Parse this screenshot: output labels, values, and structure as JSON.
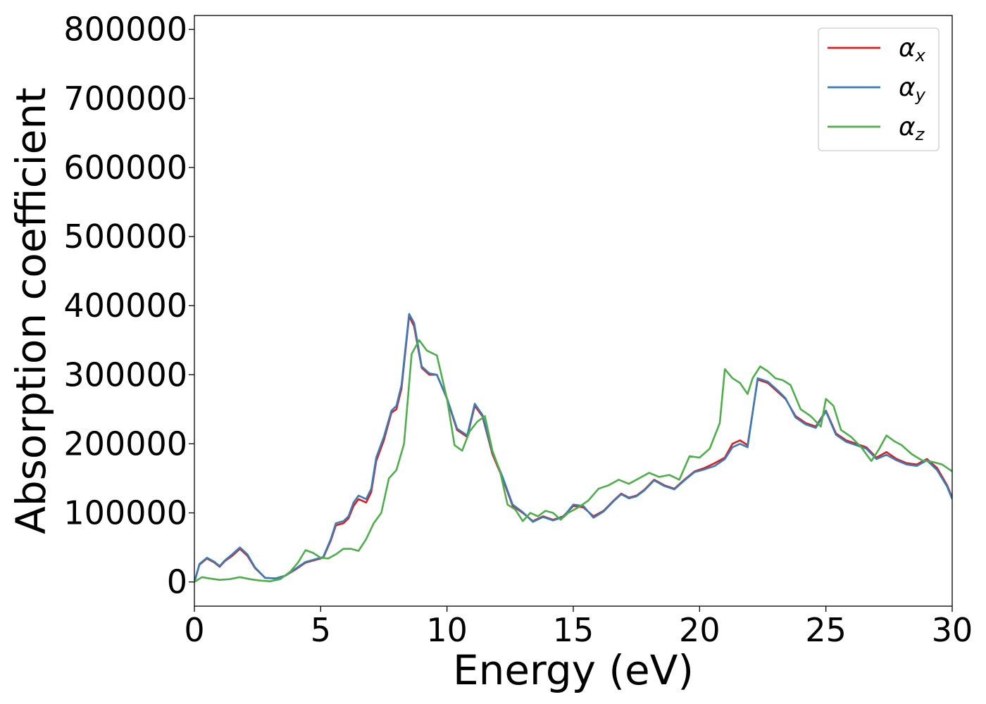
{
  "chart_data": {
    "type": "line",
    "title": "",
    "xlabel": "Energy (eV)",
    "ylabel": "Absorption coefficient",
    "xlim": [
      0,
      30
    ],
    "ylim": [
      -35000,
      820000
    ],
    "xticks": [
      0,
      5,
      10,
      15,
      20,
      25,
      30
    ],
    "xtick_labels": [
      "0",
      "5",
      "10",
      "15",
      "20",
      "25",
      "30"
    ],
    "yticks": [
      0,
      100000,
      200000,
      300000,
      400000,
      500000,
      600000,
      700000,
      800000
    ],
    "ytick_labels": [
      "0",
      "100000",
      "200000",
      "300000",
      "400000",
      "500000",
      "600000",
      "700000",
      "800000"
    ],
    "grid": false,
    "legend_position": "top-right",
    "series": [
      {
        "name": "αx",
        "symbol": "α",
        "subscript": "x",
        "color": "#e41a1c",
        "x": [
          0,
          0.2,
          0.5,
          0.8,
          1.0,
          1.2,
          1.5,
          1.8,
          2.1,
          2.4,
          2.8,
          3.2,
          3.6,
          4.0,
          4.4,
          4.8,
          5.1,
          5.4,
          5.6,
          5.9,
          6.1,
          6.3,
          6.5,
          6.8,
          7.0,
          7.2,
          7.5,
          7.8,
          8.0,
          8.2,
          8.5,
          8.7,
          9.0,
          9.3,
          9.6,
          10.0,
          10.4,
          10.8,
          11.1,
          11.4,
          11.8,
          12.2,
          12.6,
          13.0,
          13.4,
          13.8,
          14.2,
          14.6,
          15.0,
          15.4,
          15.8,
          16.2,
          16.6,
          16.9,
          17.2,
          17.5,
          17.8,
          18.2,
          18.6,
          19.0,
          19.4,
          19.8,
          20.2,
          20.6,
          21.0,
          21.3,
          21.6,
          21.9,
          22.3,
          22.7,
          23.1,
          23.4,
          23.8,
          24.2,
          24.6,
          25.0,
          25.4,
          25.8,
          26.2,
          26.6,
          27.0,
          27.4,
          27.8,
          28.2,
          28.6,
          29.0,
          29.4,
          29.8,
          30.0
        ],
        "values": [
          0,
          25000,
          34000,
          28000,
          22000,
          30000,
          38000,
          48000,
          38000,
          20000,
          6000,
          5000,
          9000,
          18000,
          28000,
          32000,
          35000,
          60000,
          82000,
          85000,
          92000,
          110000,
          120000,
          115000,
          130000,
          175000,
          205000,
          245000,
          250000,
          280000,
          385000,
          370000,
          310000,
          300000,
          300000,
          265000,
          220000,
          210000,
          255000,
          240000,
          185000,
          150000,
          110000,
          100000,
          88000,
          95000,
          90000,
          95000,
          110000,
          108000,
          95000,
          103000,
          118000,
          128000,
          122000,
          125000,
          133000,
          148000,
          140000,
          135000,
          148000,
          160000,
          165000,
          172000,
          180000,
          200000,
          205000,
          198000,
          293000,
          288000,
          275000,
          265000,
          240000,
          230000,
          225000,
          248000,
          215000,
          205000,
          200000,
          195000,
          180000,
          188000,
          178000,
          172000,
          170000,
          178000,
          165000,
          140000,
          122000
        ]
      },
      {
        "name": "αy",
        "symbol": "α",
        "subscript": "y",
        "color": "#377eb8",
        "x": [
          0,
          0.2,
          0.5,
          0.8,
          1.0,
          1.2,
          1.5,
          1.8,
          2.1,
          2.4,
          2.8,
          3.2,
          3.6,
          4.0,
          4.4,
          4.8,
          5.1,
          5.4,
          5.6,
          5.9,
          6.1,
          6.3,
          6.5,
          6.8,
          7.0,
          7.2,
          7.5,
          7.8,
          8.0,
          8.2,
          8.5,
          8.7,
          9.0,
          9.3,
          9.6,
          10.0,
          10.4,
          10.8,
          11.1,
          11.4,
          11.8,
          12.2,
          12.6,
          13.0,
          13.4,
          13.8,
          14.2,
          14.6,
          15.0,
          15.4,
          15.8,
          16.2,
          16.6,
          16.9,
          17.2,
          17.5,
          17.8,
          18.2,
          18.6,
          19.0,
          19.4,
          19.8,
          20.2,
          20.6,
          21.0,
          21.3,
          21.6,
          21.9,
          22.3,
          22.7,
          23.1,
          23.4,
          23.8,
          24.2,
          24.6,
          25.0,
          25.4,
          25.8,
          26.2,
          26.6,
          27.0,
          27.4,
          27.8,
          28.2,
          28.6,
          29.0,
          29.4,
          29.8,
          30.0
        ],
        "values": [
          0,
          26000,
          35000,
          29000,
          23000,
          31000,
          40000,
          50000,
          40000,
          21000,
          6000,
          5000,
          9000,
          19000,
          29000,
          33000,
          36000,
          62000,
          85000,
          88000,
          95000,
          115000,
          125000,
          120000,
          135000,
          180000,
          210000,
          248000,
          255000,
          285000,
          388000,
          375000,
          312000,
          302000,
          300000,
          266000,
          222000,
          212000,
          258000,
          242000,
          188000,
          152000,
          112000,
          101000,
          87000,
          94000,
          89000,
          94000,
          112000,
          110000,
          93000,
          102000,
          117000,
          127000,
          121000,
          124000,
          132000,
          147000,
          139000,
          134000,
          147000,
          159000,
          163000,
          168000,
          178000,
          195000,
          200000,
          195000,
          295000,
          290000,
          277000,
          266000,
          238000,
          228000,
          223000,
          247000,
          213000,
          203000,
          198000,
          193000,
          178000,
          184000,
          176000,
          170000,
          168000,
          176000,
          162000,
          138000,
          120000
        ]
      },
      {
        "name": "αz",
        "symbol": "α",
        "subscript": "z",
        "color": "#4daf4a",
        "x": [
          0,
          0.3,
          0.6,
          1.0,
          1.4,
          1.8,
          2.2,
          2.6,
          3.0,
          3.4,
          3.8,
          4.1,
          4.4,
          4.7,
          5.0,
          5.3,
          5.6,
          5.9,
          6.2,
          6.5,
          6.8,
          7.1,
          7.4,
          7.7,
          8.0,
          8.3,
          8.6,
          8.9,
          9.2,
          9.6,
          10.0,
          10.3,
          10.6,
          10.9,
          11.2,
          11.5,
          11.8,
          12.1,
          12.4,
          12.7,
          13.0,
          13.3,
          13.6,
          13.9,
          14.2,
          14.5,
          14.8,
          15.2,
          15.6,
          16.0,
          16.4,
          16.8,
          17.2,
          17.6,
          18.0,
          18.4,
          18.8,
          19.2,
          19.6,
          20.0,
          20.4,
          20.8,
          21.0,
          21.3,
          21.6,
          21.9,
          22.1,
          22.4,
          22.7,
          23.0,
          23.3,
          23.6,
          24.0,
          24.4,
          24.8,
          25.0,
          25.3,
          25.6,
          26.0,
          26.4,
          26.8,
          27.1,
          27.4,
          27.7,
          28.0,
          28.4,
          28.8,
          29.2,
          29.6,
          30.0
        ],
        "values": [
          0,
          7000,
          5000,
          3000,
          4000,
          7000,
          4000,
          2000,
          1000,
          4000,
          15000,
          28000,
          46000,
          42000,
          35000,
          34000,
          40000,
          48000,
          48000,
          45000,
          62000,
          85000,
          100000,
          150000,
          162000,
          200000,
          330000,
          350000,
          335000,
          328000,
          265000,
          198000,
          190000,
          218000,
          232000,
          240000,
          190000,
          160000,
          112000,
          105000,
          88000,
          100000,
          95000,
          103000,
          100000,
          90000,
          100000,
          108000,
          118000,
          135000,
          140000,
          148000,
          142000,
          150000,
          158000,
          152000,
          155000,
          148000,
          182000,
          180000,
          193000,
          230000,
          308000,
          295000,
          288000,
          272000,
          295000,
          312000,
          305000,
          295000,
          292000,
          285000,
          250000,
          240000,
          225000,
          265000,
          255000,
          220000,
          210000,
          195000,
          175000,
          192000,
          212000,
          204000,
          198000,
          185000,
          176000,
          174000,
          170000,
          160000
        ]
      }
    ]
  }
}
